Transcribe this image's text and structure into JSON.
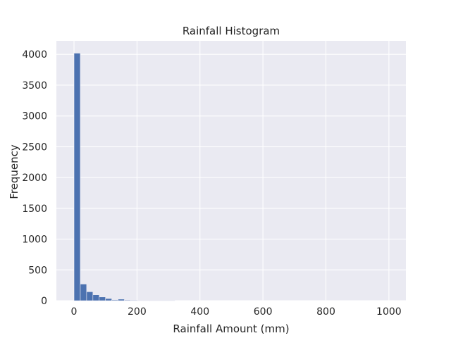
{
  "chart_data": {
    "type": "bar",
    "title": "Rainfall Histogram",
    "xlabel": "Rainfall Amount (mm)",
    "ylabel": "Frequency",
    "xlim": [
      -56,
      1054
    ],
    "ylim": [
      0,
      4220
    ],
    "xticks": [
      0,
      200,
      400,
      600,
      800,
      1000
    ],
    "yticks": [
      0,
      500,
      1000,
      1500,
      2000,
      2500,
      3000,
      3500,
      4000
    ],
    "bin_width": 20,
    "bins": [
      {
        "x0": 0,
        "value": 4020
      },
      {
        "x0": 20,
        "value": 270
      },
      {
        "x0": 40,
        "value": 145
      },
      {
        "x0": 60,
        "value": 95
      },
      {
        "x0": 80,
        "value": 60
      },
      {
        "x0": 100,
        "value": 35
      },
      {
        "x0": 120,
        "value": 12
      },
      {
        "x0": 140,
        "value": 25
      },
      {
        "x0": 160,
        "value": 10
      },
      {
        "x0": 180,
        "value": 8
      },
      {
        "x0": 200,
        "value": 5
      },
      {
        "x0": 220,
        "value": 3
      },
      {
        "x0": 240,
        "value": 2
      },
      {
        "x0": 260,
        "value": 2
      },
      {
        "x0": 280,
        "value": 1
      },
      {
        "x0": 300,
        "value": 1
      }
    ],
    "grid": true,
    "colors": {
      "bar": "#4c72b0",
      "plot_background": "#eaeaf2",
      "grid": "#ffffff",
      "text": "#262626"
    }
  }
}
